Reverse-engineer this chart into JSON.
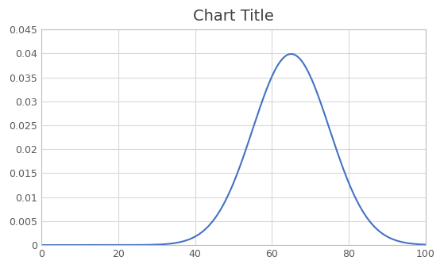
{
  "title": "Chart Title",
  "title_fontsize": 14,
  "line_color": "#4472C4",
  "line_width": 1.5,
  "mean": 65,
  "std": 10,
  "x_min": 0,
  "x_max": 100,
  "y_min": 0,
  "y_max": 0.045,
  "x_ticks": [
    0,
    20,
    40,
    60,
    80,
    100
  ],
  "y_ticks": [
    0,
    0.005,
    0.01,
    0.015,
    0.02,
    0.025,
    0.03,
    0.035,
    0.04,
    0.045
  ],
  "grid_color": "#D9D9D9",
  "background_color": "#FFFFFF",
  "spine_color": "#BFBFBF",
  "tick_label_color": "#595959",
  "title_color": "#404040"
}
